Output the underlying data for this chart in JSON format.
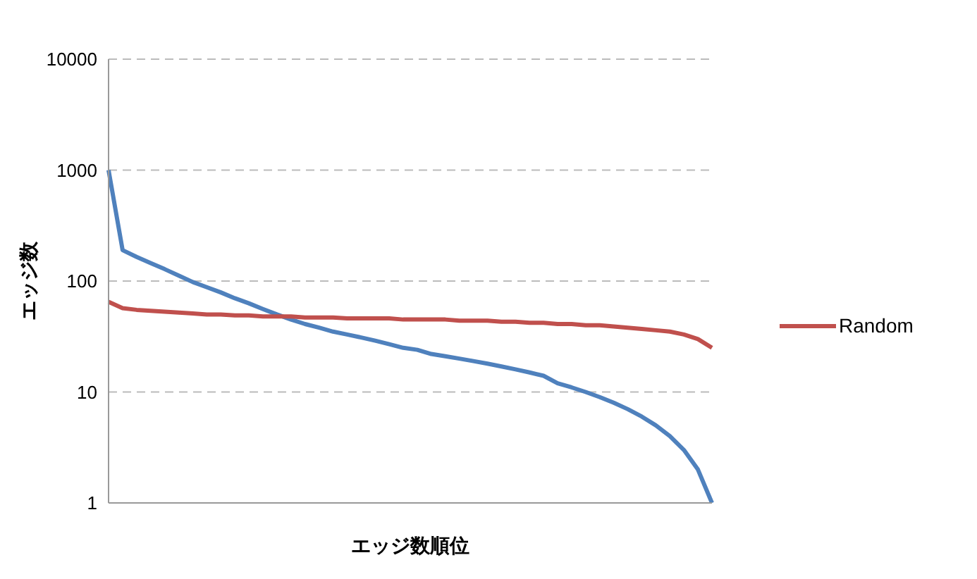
{
  "chart_data": {
    "type": "line",
    "xlabel": "エッジ数順位",
    "ylabel": "エッジ数",
    "categories": [
      null,
      null,
      null,
      null,
      null,
      null,
      null,
      null,
      null,
      null,
      null,
      null,
      null,
      null,
      null,
      null,
      null,
      null,
      null,
      null,
      null,
      null,
      null,
      null,
      null,
      null,
      null,
      null,
      null,
      null,
      null,
      null,
      null,
      null,
      null,
      null,
      null,
      null,
      null,
      null,
      null,
      null,
      null,
      null
    ],
    "series": [
      {
        "color": "#4f81bd",
        "values": [
          1000,
          190,
          165,
          145,
          128,
          112,
          98,
          88,
          79,
          70,
          63,
          56,
          50,
          45,
          41,
          38,
          35,
          33,
          31,
          29,
          27,
          25,
          24,
          22,
          21,
          20,
          19,
          18,
          17,
          16,
          15,
          14,
          12,
          11,
          10,
          9,
          8,
          7,
          6,
          5,
          4,
          3,
          2,
          1
        ]
      },
      {
        "name": "Random",
        "color": "#c0504d",
        "values": [
          65,
          57,
          55,
          54,
          53,
          52,
          51,
          50,
          50,
          49,
          49,
          48,
          48,
          48,
          47,
          47,
          47,
          46,
          46,
          46,
          46,
          45,
          45,
          45,
          45,
          44,
          44,
          44,
          43,
          43,
          42,
          42,
          41,
          41,
          40,
          40,
          39,
          38,
          37,
          36,
          35,
          33,
          30,
          25
        ]
      }
    ],
    "log": true,
    "ylim": [
      1,
      10000
    ],
    "yticks": [
      1,
      10,
      100,
      1000,
      10000
    ],
    "grid": "y",
    "legend": "right",
    "marker": "none",
    "line_style": "solid"
  }
}
